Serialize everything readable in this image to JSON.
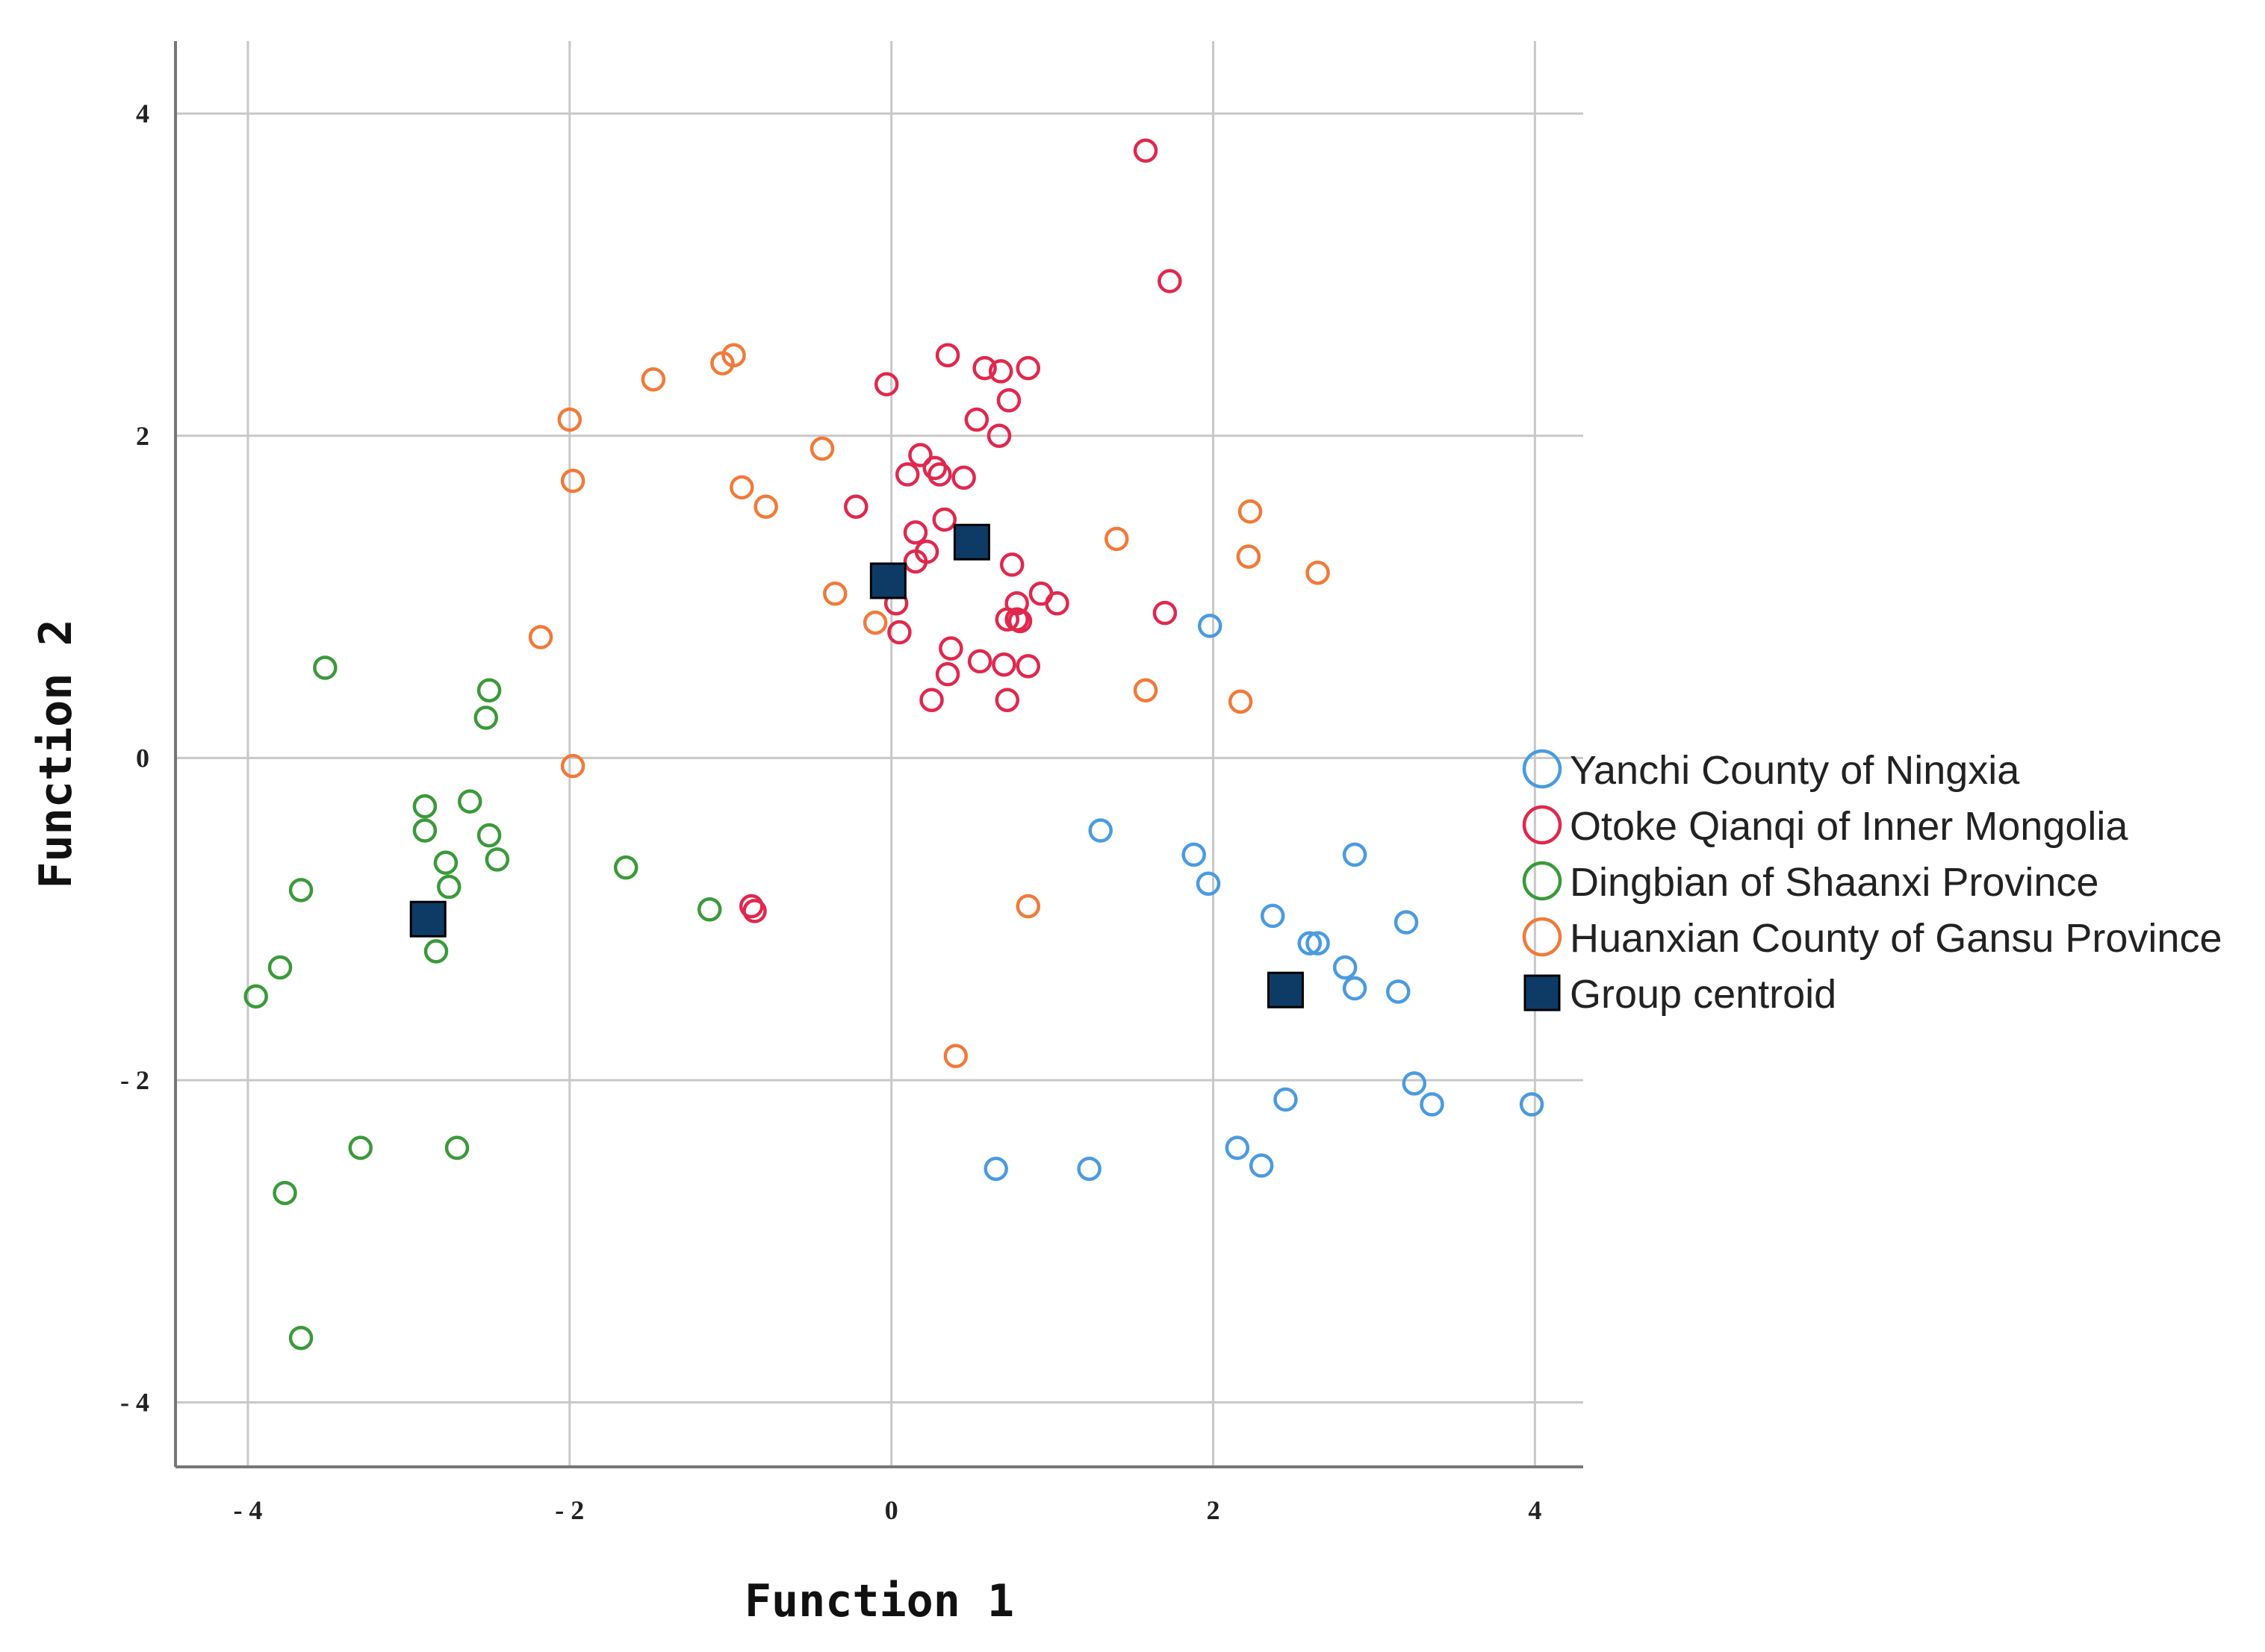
{
  "chart_data": {
    "type": "scatter",
    "xlabel": "Function 1",
    "ylabel": "Function 2",
    "xlim": [
      -4.45,
      4.3
    ],
    "ylim": [
      -4.4,
      4.45
    ],
    "xticks": [
      -4,
      -2,
      0,
      2,
      4
    ],
    "yticks": [
      -4,
      -2,
      0,
      2,
      4
    ],
    "xtick_labels": [
      "- 4",
      "- 2",
      "0",
      "2",
      "4"
    ],
    "ytick_labels": [
      "- 4",
      "- 2",
      "0",
      "2",
      "4"
    ],
    "grid": true,
    "legend_position": "right",
    "series": [
      {
        "name": "Yanchi County of Ningxia",
        "color": "#4a9be0",
        "marker": "open-circle",
        "points": [
          [
            1.98,
            0.82
          ],
          [
            1.3,
            -0.45
          ],
          [
            1.88,
            -0.6
          ],
          [
            1.97,
            -0.78
          ],
          [
            2.88,
            -0.6
          ],
          [
            2.37,
            -0.98
          ],
          [
            2.6,
            -1.15
          ],
          [
            2.65,
            -1.15
          ],
          [
            3.2,
            -1.02
          ],
          [
            2.82,
            -1.3
          ],
          [
            2.88,
            -1.43
          ],
          [
            3.15,
            -1.45
          ],
          [
            3.25,
            -2.02
          ],
          [
            3.36,
            -2.15
          ],
          [
            2.45,
            -2.12
          ],
          [
            3.98,
            -2.15
          ],
          [
            2.15,
            -2.42
          ],
          [
            2.3,
            -2.53
          ],
          [
            0.65,
            -2.55
          ],
          [
            1.23,
            -2.55
          ]
        ]
      },
      {
        "name": "Otoke Qianqi of Inner Mongolia",
        "color": "#e0284e",
        "marker": "open-circle",
        "points": [
          [
            1.58,
            3.77
          ],
          [
            1.73,
            2.96
          ],
          [
            0.35,
            2.5
          ],
          [
            -0.03,
            2.32
          ],
          [
            0.58,
            2.42
          ],
          [
            0.68,
            2.4
          ],
          [
            0.85,
            2.42
          ],
          [
            0.73,
            2.22
          ],
          [
            0.53,
            2.1
          ],
          [
            0.67,
            2.0
          ],
          [
            0.18,
            1.88
          ],
          [
            0.27,
            1.8
          ],
          [
            0.3,
            1.76
          ],
          [
            0.1,
            1.76
          ],
          [
            0.45,
            1.74
          ],
          [
            -0.22,
            1.56
          ],
          [
            0.33,
            1.48
          ],
          [
            0.15,
            1.4
          ],
          [
            0.22,
            1.28
          ],
          [
            0.15,
            1.22
          ],
          [
            0.75,
            1.2
          ],
          [
            0.93,
            1.02
          ],
          [
            1.03,
            0.96
          ],
          [
            0.78,
            0.96
          ],
          [
            0.78,
            0.86
          ],
          [
            0.72,
            0.86
          ],
          [
            0.8,
            0.85
          ],
          [
            0.03,
            0.96
          ],
          [
            0.05,
            0.78
          ],
          [
            1.7,
            0.9
          ],
          [
            0.37,
            0.68
          ],
          [
            0.55,
            0.6
          ],
          [
            0.7,
            0.58
          ],
          [
            0.85,
            0.57
          ],
          [
            0.35,
            0.52
          ],
          [
            0.25,
            0.36
          ],
          [
            0.72,
            0.36
          ],
          [
            -0.87,
            -0.92
          ],
          [
            -0.85,
            -0.95
          ]
        ]
      },
      {
        "name": "Dingbian of Shaanxi Province",
        "color": "#3a9a3a",
        "marker": "open-circle",
        "points": [
          [
            -3.52,
            0.56
          ],
          [
            -2.5,
            0.42
          ],
          [
            -2.52,
            0.25
          ],
          [
            -2.62,
            -0.27
          ],
          [
            -2.9,
            -0.3
          ],
          [
            -2.9,
            -0.45
          ],
          [
            -2.5,
            -0.48
          ],
          [
            -2.45,
            -0.63
          ],
          [
            -2.77,
            -0.65
          ],
          [
            -2.75,
            -0.8
          ],
          [
            -3.67,
            -0.82
          ],
          [
            -1.65,
            -0.68
          ],
          [
            -1.13,
            -0.94
          ],
          [
            -2.83,
            -1.2
          ],
          [
            -3.8,
            -1.3
          ],
          [
            -3.95,
            -1.48
          ],
          [
            -3.3,
            -2.42
          ],
          [
            -2.7,
            -2.42
          ],
          [
            -3.77,
            -2.7
          ],
          [
            -3.67,
            -3.6
          ]
        ]
      },
      {
        "name": "Huanxian County of Gansu Province",
        "color": "#f07a3a",
        "marker": "open-circle",
        "points": [
          [
            -0.98,
            2.5
          ],
          [
            -1.05,
            2.45
          ],
          [
            -1.48,
            2.35
          ],
          [
            -2.0,
            2.1
          ],
          [
            -1.98,
            1.72
          ],
          [
            -0.43,
            1.92
          ],
          [
            -0.93,
            1.68
          ],
          [
            -0.78,
            1.56
          ],
          [
            -0.35,
            1.02
          ],
          [
            -0.1,
            0.84
          ],
          [
            -2.18,
            0.75
          ],
          [
            -1.98,
            -0.05
          ],
          [
            1.4,
            1.36
          ],
          [
            2.23,
            1.53
          ],
          [
            2.22,
            1.25
          ],
          [
            2.65,
            1.15
          ],
          [
            1.58,
            0.42
          ],
          [
            2.17,
            0.35
          ],
          [
            0.85,
            -0.92
          ],
          [
            0.4,
            -1.85
          ]
        ]
      },
      {
        "name": "Group centroid",
        "color": "#0d3b66",
        "marker": "filled-square",
        "points": [
          [
            -0.02,
            1.1
          ],
          [
            0.5,
            1.34
          ],
          [
            -2.88,
            -1.0
          ],
          [
            2.45,
            -1.44
          ]
        ]
      }
    ]
  }
}
